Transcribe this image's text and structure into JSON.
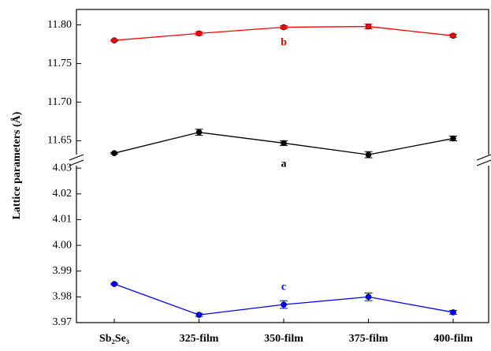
{
  "chart_data": [
    {
      "type": "line",
      "ylabel": "Lattice parameters (Å)",
      "categories": [
        "Sb₂Se₃",
        "325-film",
        "350-film",
        "375-film",
        "400-film"
      ],
      "ylim": [
        11.625,
        11.82
      ],
      "yticks": [
        {
          "value": 11.65,
          "label": "11.65"
        },
        {
          "value": 11.7,
          "label": "11.70"
        },
        {
          "value": 11.75,
          "label": "11.75"
        },
        {
          "value": 11.8,
          "label": "11.80"
        }
      ],
      "series": [
        {
          "name": "b",
          "color": "#ff0000",
          "values": [
            11.78,
            11.789,
            11.797,
            11.798,
            11.786
          ],
          "errors": [
            0.001,
            0.002,
            0.002,
            0.003,
            0.002
          ]
        },
        {
          "name": "a",
          "color": "#000000",
          "values": [
            11.634,
            11.661,
            11.647,
            11.632,
            11.653
          ],
          "errors": [
            0.001,
            0.004,
            0.003,
            0.004,
            0.003
          ]
        }
      ]
    },
    {
      "type": "line",
      "ylim": [
        3.97,
        4.0325
      ],
      "yticks": [
        3.97,
        3.98,
        3.99,
        {
          "value": 4.0,
          "label": "4.00"
        },
        4.01,
        4.02,
        4.03
      ],
      "series": [
        {
          "name": "c",
          "color": "#0000ff",
          "values": [
            3.985,
            3.973,
            3.977,
            3.98,
            3.974
          ],
          "errors": [
            0.0003,
            0.0006,
            0.0015,
            0.0015,
            0.0007
          ]
        }
      ]
    }
  ]
}
